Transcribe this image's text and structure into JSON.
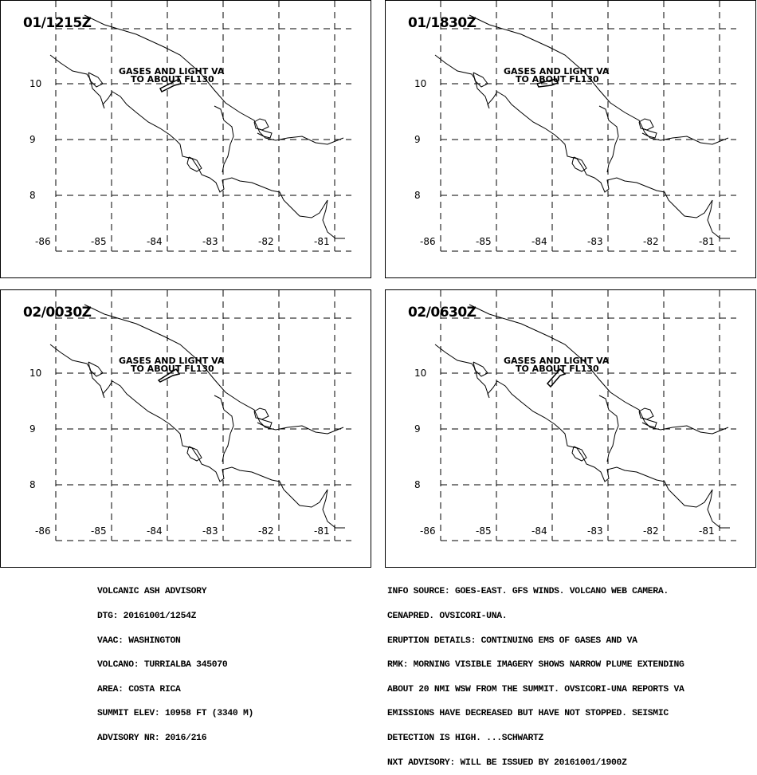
{
  "panels": [
    {
      "title": "01/1215Z",
      "label_line1": "GASES AND LIGHT VA",
      "label_line2": "TO ABOUT FL130"
    },
    {
      "title": "01/1830Z",
      "label_line1": "GASES AND LIGHT VA",
      "label_line2": "TO ABOUT FL130"
    },
    {
      "title": "02/0030Z",
      "label_line1": "GASES AND LIGHT VA",
      "label_line2": "TO ABOUT FL130"
    },
    {
      "title": "02/0630Z",
      "label_line1": "GASES AND LIGHT VA",
      "label_line2": "TO ABOUT FL130"
    }
  ],
  "axes": {
    "lat_labels": [
      "10",
      "9",
      "8"
    ],
    "lon_labels": [
      "-86",
      "-85",
      "-84",
      "-83",
      "-82",
      "-81"
    ]
  },
  "advisory_left": [
    "VOLCANIC ASH ADVISORY",
    "DTG: 20161001/1254Z",
    "VAAC: WASHINGTON",
    "VOLCANO: TURRIALBA 345070",
    "AREA: COSTA RICA",
    "SUMMIT ELEV: 10958 FT (3340 M)",
    "ADVISORY NR: 2016/216"
  ],
  "advisory_right": [
    "INFO SOURCE: GOES-EAST. GFS WINDS. VOLCANO WEB CAMERA.",
    "CENAPRED. OVSICORI-UNA.",
    "ERUPTION DETAILS: CONTINUING EMS OF GASES AND VA",
    "RMK: MORNING VISIBLE IMAGERY SHOWS NARROW PLUME EXTENDING",
    "ABOUT 20 NMI WSW FROM THE SUMMIT. OVSICORI-UNA REPORTS VA",
    "EMISSIONS HAVE DECREASED BUT HAVE NOT STOPPED. SEISMIC",
    "DETECTION IS HIGH. ...SCHWARTZ",
    "NXT ADVISORY: WILL BE ISSUED BY 20161001/1900Z"
  ]
}
